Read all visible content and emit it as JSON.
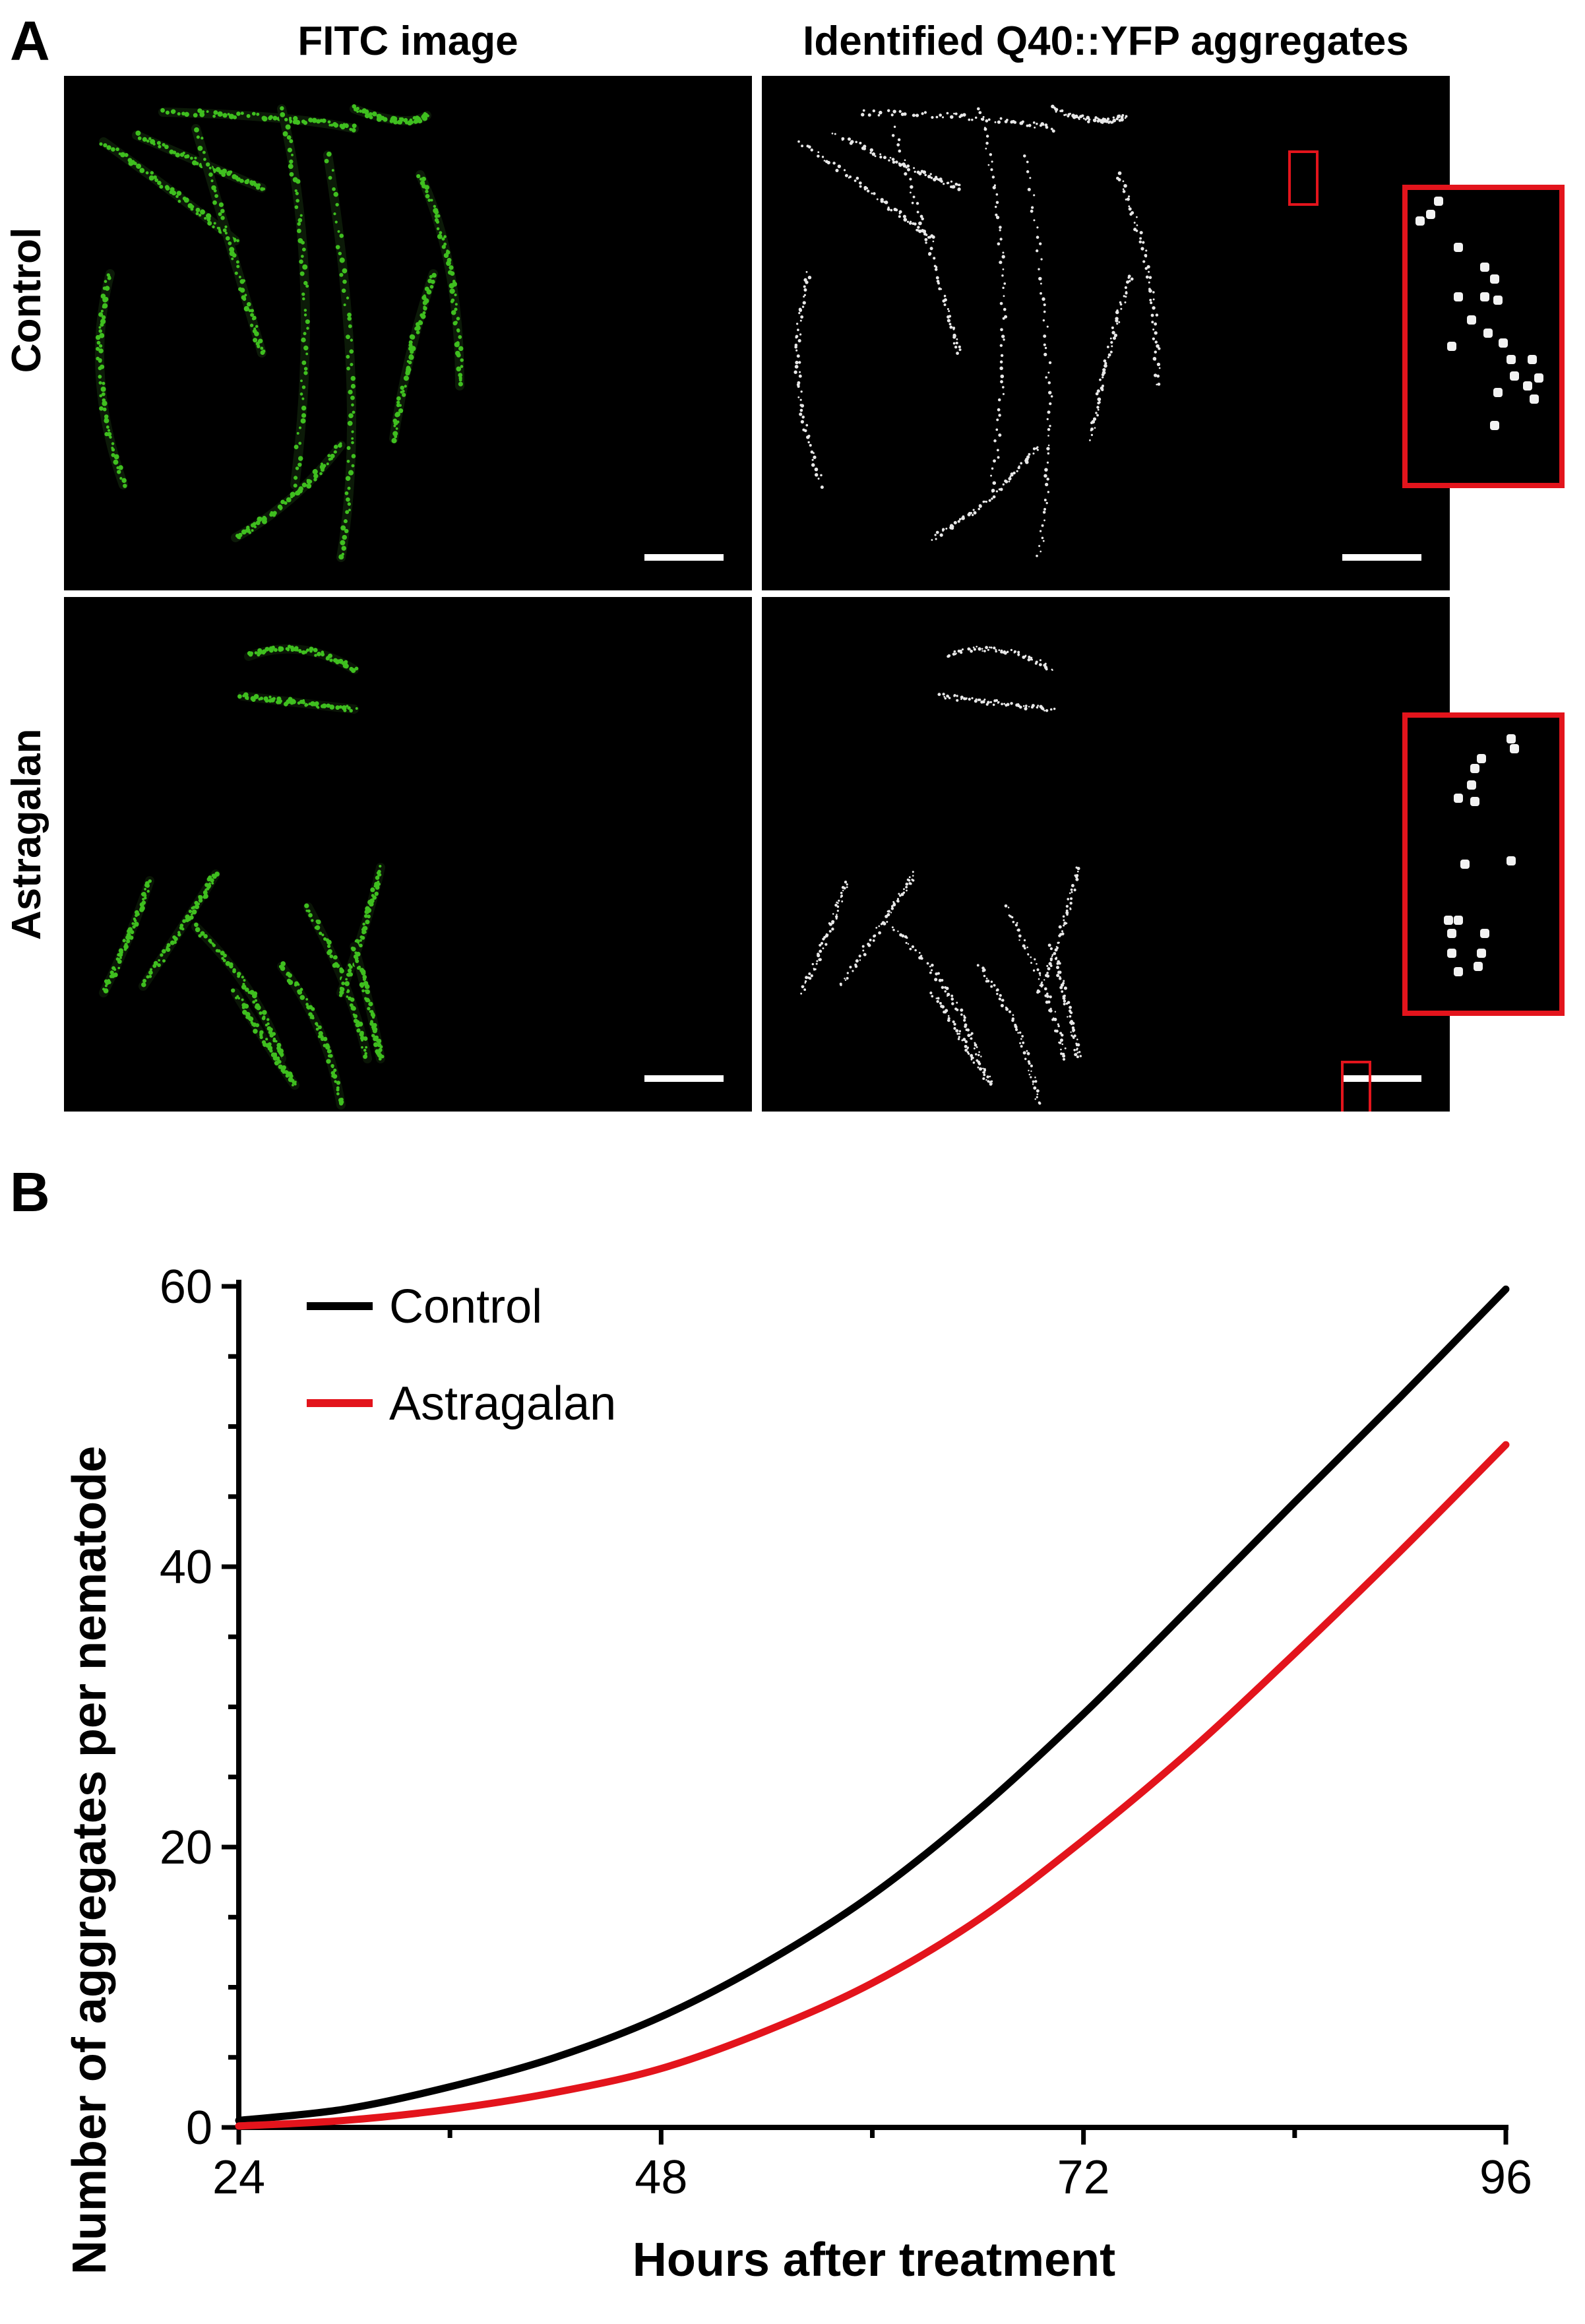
{
  "panel_a": {
    "letter": "A",
    "col_titles": [
      "FITC image",
      "Identified Q40::YFP aggregates"
    ],
    "row_labels": [
      "Control",
      "Astragalan"
    ],
    "colors": {
      "fitc_green": "#3fbf1f",
      "aggregate_white": "#e8e8e8",
      "highlight_red": "#e3141c"
    }
  },
  "panel_b": {
    "letter": "B",
    "legend": [
      "Control",
      "Astragalan"
    ],
    "colors": {
      "control": "#000000",
      "astragalan": "#e3141c"
    }
  },
  "chart_data": {
    "type": "line",
    "title": "",
    "xlabel": "Hours after treatment",
    "ylabel": "Number of aggregates per nematode",
    "xlim": [
      24,
      96
    ],
    "ylim": [
      0,
      60
    ],
    "xticks": [
      24,
      48,
      72,
      96
    ],
    "yticks": [
      0,
      20,
      40,
      60
    ],
    "x": [
      24,
      30,
      36,
      42,
      48,
      54,
      60,
      66,
      72,
      78,
      84,
      90,
      96
    ],
    "series": [
      {
        "name": "Control",
        "color": "#000000",
        "values": [
          0.5,
          1.3,
          2.9,
          5.0,
          7.9,
          11.8,
          16.6,
          22.6,
          29.5,
          37.0,
          44.6,
          52.1,
          59.8
        ]
      },
      {
        "name": "Astragalan",
        "color": "#e3141c",
        "values": [
          0.1,
          0.5,
          1.3,
          2.5,
          4.2,
          6.9,
          10.3,
          14.8,
          20.5,
          26.8,
          33.8,
          41.1,
          48.7
        ]
      }
    ]
  }
}
